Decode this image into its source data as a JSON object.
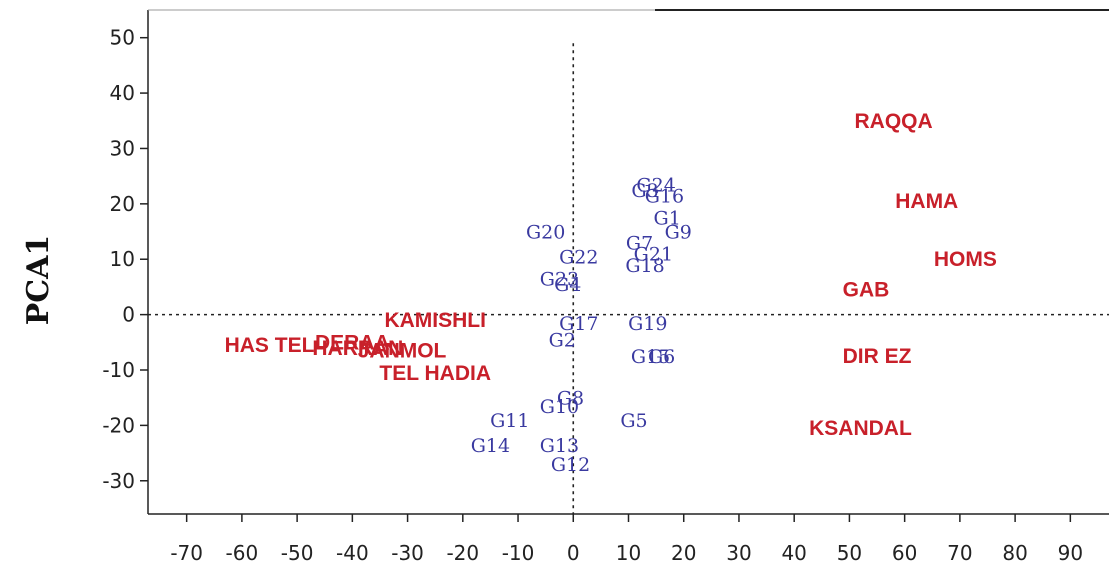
{
  "chart_data": {
    "type": "scatter",
    "title": "",
    "xlabel": "",
    "ylabel": "PCA1",
    "xlim": [
      -77,
      97
    ],
    "ylim": [
      -36,
      55
    ],
    "xticks": [
      "-70",
      "-60",
      "-50",
      "-40",
      "-30",
      "-20",
      "-10",
      "0",
      "10",
      "20",
      "30",
      "40",
      "50",
      "60",
      "70",
      "80",
      "90"
    ],
    "yticks": [
      "50",
      "40",
      "30",
      "20",
      "10",
      "0",
      "-10",
      "-20",
      "-30"
    ],
    "xtick_values": [
      -70,
      -60,
      -50,
      -40,
      -30,
      -20,
      -10,
      0,
      10,
      20,
      30,
      40,
      50,
      60,
      70,
      80,
      90
    ],
    "ytick_values": [
      50,
      40,
      30,
      20,
      10,
      0,
      -10,
      -20,
      -30
    ],
    "reference_lines": {
      "x": 0,
      "y": 0,
      "style": "dotted"
    },
    "grid": false,
    "legend": "none",
    "colors": {
      "genotypes": "#3a3aa0",
      "sites": "#c8202a",
      "axis": "#222222"
    },
    "series": [
      {
        "points": [
          {
            "label": "G1",
            "x": 17,
            "y": 17.5
          },
          {
            "label": "G2",
            "x": -2,
            "y": -4.5
          },
          {
            "label": "G4",
            "x": -1,
            "y": 5.5
          },
          {
            "label": "G5",
            "x": 11,
            "y": -19
          },
          {
            "label": "G6",
            "x": 16,
            "y": -7.5
          },
          {
            "label": "G7",
            "x": 12,
            "y": 13
          },
          {
            "label": "G8",
            "x": -0.5,
            "y": -15
          },
          {
            "label": "G9",
            "x": 19,
            "y": 15
          },
          {
            "label": "G10",
            "x": -2.5,
            "y": -16.5
          },
          {
            "label": "G11",
            "x": -11.5,
            "y": -19
          },
          {
            "label": "G12",
            "x": -0.5,
            "y": -27
          },
          {
            "label": "G13",
            "x": -2.5,
            "y": -23.5
          },
          {
            "label": "G14",
            "x": -15,
            "y": -23.5
          },
          {
            "label": "G15",
            "x": 14,
            "y": -7.5
          },
          {
            "label": "G16",
            "x": 16.5,
            "y": 21.5
          },
          {
            "label": "G17",
            "x": 1,
            "y": -1.5
          },
          {
            "label": "G18",
            "x": 13,
            "y": 9
          },
          {
            "label": "G19",
            "x": 13.5,
            "y": -1.5
          },
          {
            "label": "G20",
            "x": -5,
            "y": 15
          },
          {
            "label": "G21",
            "x": 14.5,
            "y": 11
          },
          {
            "label": "G22",
            "x": 1,
            "y": 10.5
          },
          {
            "label": "G23",
            "x": -2.5,
            "y": 6.5
          },
          {
            "label": "G24",
            "x": 15,
            "y": 23.5
          },
          {
            "label": "G3",
            "x": 13,
            "y": 22.5
          }
        ]
      },
      {
        "points": [
          {
            "label": "RAQQA",
            "x": 58,
            "y": 35
          },
          {
            "label": "HAMA",
            "x": 64,
            "y": 20.5
          },
          {
            "label": "HOMS",
            "x": 71,
            "y": 10
          },
          {
            "label": "GAB",
            "x": 53,
            "y": 4.5
          },
          {
            "label": "DIR EZ",
            "x": 55,
            "y": -7.5
          },
          {
            "label": "KSANDAL",
            "x": 52,
            "y": -20.5
          },
          {
            "label": "KAMISHLI",
            "x": -25,
            "y": -1
          },
          {
            "label": "HAS TEL",
            "x": -55,
            "y": -5.5
          },
          {
            "label": "DERAA",
            "x": -40,
            "y": -5
          },
          {
            "label": "HARRAN",
            "x": -39,
            "y": -6
          },
          {
            "label": "JANMOL",
            "x": -31,
            "y": -6.5
          },
          {
            "label": "TEL HADIA",
            "x": -25,
            "y": -10.5
          }
        ]
      }
    ]
  }
}
